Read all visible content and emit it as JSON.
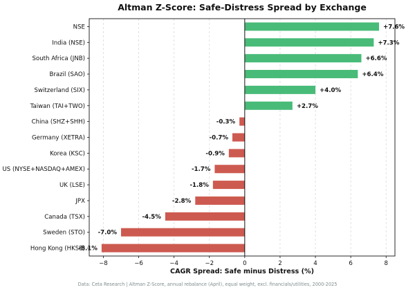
{
  "chart_data": {
    "type": "bar",
    "orientation": "horizontal",
    "title": "Altman Z-Score: Safe-Distress Spread by Exchange",
    "xlabel": "CAGR Spread: Safe minus Distress (%)",
    "ylabel": "",
    "xlim": [
      -8.8,
      8.5
    ],
    "xticks": [
      -8,
      -6,
      -4,
      -2,
      0,
      2,
      4,
      6,
      8
    ],
    "xtick_labels": [
      "−8",
      "−6",
      "−4",
      "−2",
      "0",
      "2",
      "4",
      "6",
      "8"
    ],
    "grid": "vertical dashed",
    "categories": [
      "NSE",
      "India (NSE)",
      "South Africa (JNB)",
      "Brazil (SAO)",
      "Switzerland (SIX)",
      "Taiwan (TAI+TWO)",
      "China (SHZ+SHH)",
      "Germany (XETRA)",
      "Korea (KSC)",
      "US (NYSE+NASDAQ+AMEX)",
      "UK (LSE)",
      "JPX",
      "Canada (TSX)",
      "Sweden (STO)",
      "Hong Kong (HKSE)"
    ],
    "values": [
      7.6,
      7.3,
      6.6,
      6.4,
      4.0,
      2.7,
      -0.3,
      -0.7,
      -0.9,
      -1.7,
      -1.8,
      -2.8,
      -4.5,
      -7.0,
      -8.1
    ],
    "data_labels": [
      "+7.6%",
      "+7.3%",
      "+6.6%",
      "+6.4%",
      "+4.0%",
      "+2.7%",
      "-0.3%",
      "-0.7%",
      "-0.9%",
      "-1.7%",
      "-1.8%",
      "-2.8%",
      "-4.5%",
      "-7.0%",
      "-8.1%"
    ],
    "colors": {
      "positive": "#48bb78",
      "negative": "#cd5a50"
    },
    "footnote": "Data: Ceta Research | Altman Z-Score, annual rebalance (April), equal weight, excl. financials/utilities, 2000-2025"
  }
}
